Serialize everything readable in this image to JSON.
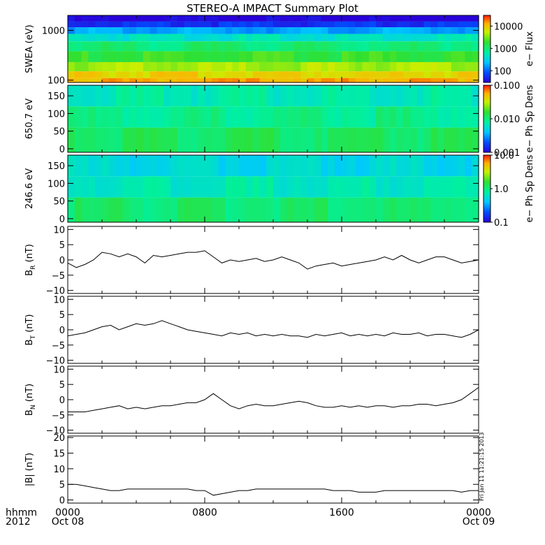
{
  "title": "STEREO-A IMPACT Summary Plot",
  "time_axis": {
    "corner_label_1": "hhmm",
    "corner_label_2": "2012",
    "ticks": [
      {
        "hhmm": "0000",
        "date": "Oct 08",
        "hour": 0
      },
      {
        "hhmm": "0800",
        "date": "",
        "hour": 8
      },
      {
        "hhmm": "1600",
        "date": "",
        "hour": 16
      },
      {
        "hhmm": "0000",
        "date": "Oct 09",
        "hour": 24
      }
    ]
  },
  "stamp": "Fri Jan 11 11:21:15 2013",
  "chart_data": [
    {
      "type": "heatmap",
      "panel": "swea",
      "ylabel": "SWEA (eV)",
      "yscale": "log",
      "ylim": [
        90,
        2000
      ],
      "yticks": [
        {
          "value": 100,
          "label": "100"
        },
        {
          "value": 1000,
          "label": "1000"
        }
      ],
      "colorbar": {
        "label": "e− Flux",
        "scale": "log",
        "range": [
          30,
          30000
        ],
        "ticks": [
          {
            "value": 100,
            "label": "100"
          },
          {
            "value": 1000,
            "label": "1000"
          },
          {
            "value": 10000,
            "label": "10000"
          }
        ]
      },
      "bands": [
        {
          "from": 1500,
          "to": 2000,
          "level": 0.02
        },
        {
          "from": 1150,
          "to": 1500,
          "level": 0.12
        },
        {
          "from": 850,
          "to": 1150,
          "level": 0.28
        },
        {
          "from": 600,
          "to": 850,
          "level": 0.42
        },
        {
          "from": 380,
          "to": 600,
          "level": 0.53
        },
        {
          "from": 230,
          "to": 380,
          "level": 0.62
        },
        {
          "from": 150,
          "to": 230,
          "level": 0.74
        },
        {
          "from": 110,
          "to": 150,
          "level": 0.84
        },
        {
          "from": 90,
          "to": 110,
          "level": 0.9
        }
      ]
    },
    {
      "type": "heatmap",
      "panel": "pad650",
      "ylabel": "650.7 eV",
      "ylim": [
        -10,
        180
      ],
      "yticks": [
        {
          "value": 0,
          "label": "0"
        },
        {
          "value": 50,
          "label": "50"
        },
        {
          "value": 100,
          "label": "100"
        },
        {
          "value": 150,
          "label": "150"
        }
      ],
      "colorbar": {
        "label": "e− Ph Sp Dens",
        "scale": "log",
        "range": [
          0.001,
          0.1
        ],
        "ticks": [
          {
            "value": 0.001,
            "label": "0.001"
          },
          {
            "value": 0.01,
            "label": "0.010"
          },
          {
            "value": 0.1,
            "label": "0.100"
          }
        ]
      },
      "bands": [
        {
          "from": 120,
          "to": 180,
          "level": 0.45
        },
        {
          "from": 60,
          "to": 120,
          "level": 0.5
        },
        {
          "from": -10,
          "to": 60,
          "level": 0.56
        }
      ]
    },
    {
      "type": "heatmap",
      "panel": "pad246",
      "ylabel": "246.6 eV",
      "ylim": [
        -10,
        180
      ],
      "yticks": [
        {
          "value": 0,
          "label": "0"
        },
        {
          "value": 50,
          "label": "50"
        },
        {
          "value": 100,
          "label": "100"
        },
        {
          "value": 150,
          "label": "150"
        }
      ],
      "colorbar": {
        "label": "e− Ph Sp Dens",
        "scale": "log",
        "range": [
          0.1,
          10
        ],
        "ticks": [
          {
            "value": 0.1,
            "label": "0.1"
          },
          {
            "value": 1,
            "label": "1.0"
          },
          {
            "value": 10,
            "label": "10.0"
          }
        ]
      },
      "bands": [
        {
          "from": 120,
          "to": 180,
          "level": 0.38
        },
        {
          "from": 60,
          "to": 120,
          "level": 0.44
        },
        {
          "from": -10,
          "to": 60,
          "level": 0.54
        }
      ]
    },
    {
      "type": "line",
      "panel": "br",
      "ylabel": "B",
      "ylabel_sub": "R",
      "ylabel_unit": " (nT)",
      "ylim": [
        -11,
        11
      ],
      "yticks": [
        {
          "value": -10,
          "label": "−10"
        },
        {
          "value": -5,
          "label": "−5"
        },
        {
          "value": 0,
          "label": "0"
        },
        {
          "value": 5,
          "label": "5"
        },
        {
          "value": 10,
          "label": "10"
        }
      ],
      "x": [
        0,
        0.5,
        1,
        1.5,
        2,
        2.5,
        3,
        3.5,
        4,
        4.5,
        5,
        5.5,
        6,
        6.5,
        7,
        7.5,
        8,
        8.5,
        9,
        9.5,
        10,
        10.5,
        11,
        11.5,
        12,
        12.5,
        13,
        13.5,
        14,
        14.5,
        15,
        15.5,
        16,
        16.5,
        17,
        17.5,
        18,
        18.5,
        19,
        19.5,
        20,
        20.5,
        21,
        21.5,
        22,
        22.5,
        23,
        23.5,
        24
      ],
      "y": [
        -1,
        -2.5,
        -1.5,
        0,
        2.5,
        2,
        1,
        2,
        1,
        -1,
        1.5,
        1,
        1.5,
        2,
        2.5,
        2.5,
        3,
        1,
        -1,
        0,
        -0.5,
        0,
        0.5,
        -0.5,
        0,
        1,
        0,
        -1,
        -3,
        -2,
        -1.5,
        -1,
        -2,
        -1.5,
        -1,
        -0.5,
        0,
        1,
        0,
        1.5,
        0,
        -1,
        0,
        1,
        1,
        0,
        -1,
        -0.5,
        0
      ]
    },
    {
      "type": "line",
      "panel": "bt",
      "ylabel": "B",
      "ylabel_sub": "T",
      "ylabel_unit": " (nT)",
      "ylim": [
        -11,
        11
      ],
      "yticks": [
        {
          "value": -10,
          "label": "−10"
        },
        {
          "value": -5,
          "label": "−5"
        },
        {
          "value": 0,
          "label": "0"
        },
        {
          "value": 5,
          "label": "5"
        },
        {
          "value": 10,
          "label": "10"
        }
      ],
      "x": [
        0,
        0.5,
        1,
        1.5,
        2,
        2.5,
        3,
        3.5,
        4,
        4.5,
        5,
        5.5,
        6,
        6.5,
        7,
        7.5,
        8,
        8.5,
        9,
        9.5,
        10,
        10.5,
        11,
        11.5,
        12,
        12.5,
        13,
        13.5,
        14,
        14.5,
        15,
        15.5,
        16,
        16.5,
        17,
        17.5,
        18,
        18.5,
        19,
        19.5,
        20,
        20.5,
        21,
        21.5,
        22,
        22.5,
        23,
        23.5,
        24
      ],
      "y": [
        -2,
        -1.5,
        -1,
        0,
        1,
        1.5,
        0,
        1,
        2,
        1.5,
        2,
        3,
        2,
        1,
        0,
        -0.5,
        -1,
        -1.5,
        -2,
        -1,
        -1.5,
        -1,
        -2,
        -1.5,
        -2,
        -1.5,
        -2,
        -2,
        -2.5,
        -1.5,
        -2,
        -1.5,
        -1,
        -2,
        -1.5,
        -2,
        -1.5,
        -2,
        -1,
        -1.5,
        -1.5,
        -1,
        -2,
        -1.5,
        -1.5,
        -2,
        -2.5,
        -1.5,
        0
      ]
    },
    {
      "type": "line",
      "panel": "bn",
      "ylabel": "B",
      "ylabel_sub": "N",
      "ylabel_unit": " (nT)",
      "ylim": [
        -11,
        11
      ],
      "yticks": [
        {
          "value": -10,
          "label": "−10"
        },
        {
          "value": -5,
          "label": "−5"
        },
        {
          "value": 0,
          "label": "0"
        },
        {
          "value": 5,
          "label": "5"
        },
        {
          "value": 10,
          "label": "10"
        }
      ],
      "x": [
        0,
        0.5,
        1,
        1.5,
        2,
        2.5,
        3,
        3.5,
        4,
        4.5,
        5,
        5.5,
        6,
        6.5,
        7,
        7.5,
        8,
        8.5,
        9,
        9.5,
        10,
        10.5,
        11,
        11.5,
        12,
        12.5,
        13,
        13.5,
        14,
        14.5,
        15,
        15.5,
        16,
        16.5,
        17,
        17.5,
        18,
        18.5,
        19,
        19.5,
        20,
        20.5,
        21,
        21.5,
        22,
        22.5,
        23,
        23.5,
        24
      ],
      "y": [
        -4,
        -4,
        -4,
        -3.5,
        -3,
        -2.5,
        -2,
        -3,
        -2.5,
        -3,
        -2.5,
        -2,
        -2,
        -1.5,
        -1,
        -1,
        0,
        2,
        0,
        -2,
        -3,
        -2,
        -1.5,
        -2,
        -2,
        -1.5,
        -1,
        -0.5,
        -1,
        -2,
        -2.5,
        -2.5,
        -2,
        -2.5,
        -2,
        -2.5,
        -2,
        -2,
        -2.5,
        -2,
        -2,
        -1.5,
        -1.5,
        -2,
        -1.5,
        -1,
        0,
        2,
        4
      ]
    },
    {
      "type": "line",
      "panel": "bmag",
      "ylabel": "|B| (nT)",
      "ylim": [
        -1,
        20.5
      ],
      "yticks": [
        {
          "value": 0,
          "label": "0"
        },
        {
          "value": 5,
          "label": "5"
        },
        {
          "value": 10,
          "label": "10"
        },
        {
          "value": 15,
          "label": "15"
        },
        {
          "value": 20,
          "label": "20"
        }
      ],
      "x": [
        0,
        0.5,
        1,
        1.5,
        2,
        2.5,
        3,
        3.5,
        4,
        4.5,
        5,
        5.5,
        6,
        6.5,
        7,
        7.5,
        8,
        8.5,
        9,
        9.5,
        10,
        10.5,
        11,
        11.5,
        12,
        12.5,
        13,
        13.5,
        14,
        14.5,
        15,
        15.5,
        16,
        16.5,
        17,
        17.5,
        18,
        18.5,
        19,
        19.5,
        20,
        20.5,
        21,
        21.5,
        22,
        22.5,
        23,
        23.5,
        24
      ],
      "y": [
        5,
        5,
        4.5,
        4,
        3.5,
        3,
        3,
        3.5,
        3.5,
        3.5,
        3.5,
        3.5,
        3.5,
        3.5,
        3.5,
        3,
        3,
        1.5,
        2,
        2.5,
        3,
        3,
        3.5,
        3.5,
        3.5,
        3.5,
        3.5,
        3.5,
        3.5,
        3.5,
        3.5,
        3,
        3,
        3,
        2.5,
        2.5,
        2.5,
        3,
        3,
        3,
        3,
        3,
        3,
        3,
        3,
        3,
        2.5,
        3,
        3
      ]
    }
  ]
}
